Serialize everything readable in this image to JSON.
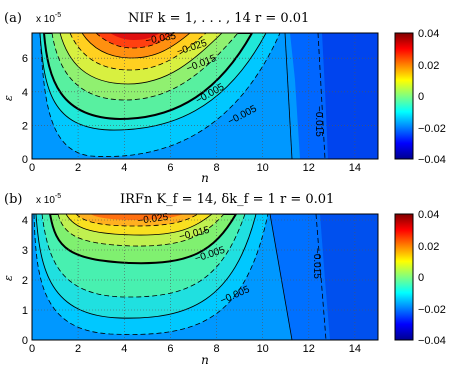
{
  "chart_data": [
    {
      "type": "contour",
      "panel_label": "(a)",
      "title": "NIF    k = 1, . . . , 14    r = 0.01",
      "xlabel": "n",
      "ylabel": "ε",
      "y_exponent": "x 10",
      "y_exponent_power": "-5",
      "xlim": [
        0,
        15
      ],
      "ylim": [
        0,
        7.5
      ],
      "xticks": [
        "0",
        "2",
        "4",
        "6",
        "8",
        "10",
        "12",
        "14"
      ],
      "yticks": [
        "0",
        "2",
        "4",
        "6"
      ],
      "grid": true,
      "contour_labels": [
        "−0.035",
        "−0.025",
        "−0.015",
        "−0.005",
        "−0.005",
        "−0.015"
      ],
      "colorbar": {
        "ticks": [
          "0.04",
          "0.02",
          "0",
          "−0.02",
          "−0.04"
        ],
        "range": [
          -0.04,
          0.04
        ]
      }
    },
    {
      "type": "contour",
      "panel_label": "(b)",
      "title": "IRFn    K_f = 14, δk_f = 1    r = 0.01",
      "xlabel": "n",
      "ylabel": "ε",
      "y_exponent": "x 10",
      "y_exponent_power": "-5",
      "xlim": [
        0,
        15
      ],
      "ylim": [
        0,
        4.2
      ],
      "xticks": [
        "0",
        "2",
        "4",
        "6",
        "8",
        "10",
        "12",
        "14"
      ],
      "yticks": [
        "0",
        "1",
        "2",
        "3",
        "4"
      ],
      "grid": true,
      "contour_labels": [
        "−0.025",
        "−0.015",
        "−0.005",
        "−0.005",
        "−0.015"
      ],
      "colorbar": {
        "ticks": [
          "0.04",
          "0.02",
          "0",
          "−0.02",
          "−0.04"
        ],
        "range": [
          -0.04,
          0.04
        ]
      }
    }
  ]
}
